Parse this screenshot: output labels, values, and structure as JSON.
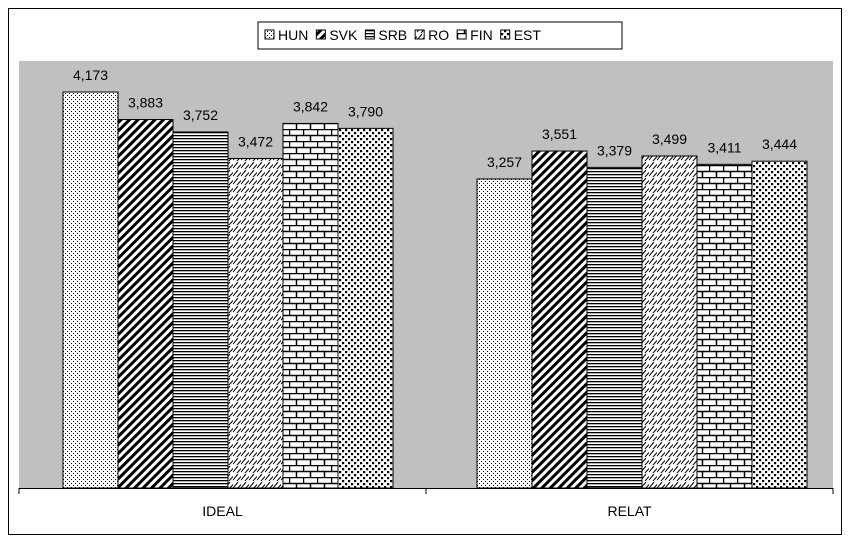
{
  "chart_data": {
    "type": "bar",
    "title": "",
    "xlabel": "",
    "ylabel": "",
    "categories": [
      "IDEAL",
      "RELAT"
    ],
    "series": [
      {
        "name": "HUN",
        "values": [
          4.173,
          3.257
        ],
        "labels": [
          "4,173",
          "3,257"
        ],
        "pattern": "dots"
      },
      {
        "name": "SVK",
        "values": [
          3.883,
          3.551
        ],
        "labels": [
          "3,883",
          "3,551"
        ],
        "pattern": "wide-diagonal"
      },
      {
        "name": "SRB",
        "values": [
          3.752,
          3.379
        ],
        "labels": [
          "3,752",
          "3,379"
        ],
        "pattern": "horizontal"
      },
      {
        "name": "RO",
        "values": [
          3.472,
          3.499
        ],
        "labels": [
          "3,472",
          "3,499"
        ],
        "pattern": "dashed-diagonal"
      },
      {
        "name": "FIN",
        "values": [
          3.842,
          3.411
        ],
        "labels": [
          "3,842",
          "3,411"
        ],
        "pattern": "brick"
      },
      {
        "name": "EST",
        "values": [
          3.79,
          3.444
        ],
        "labels": [
          "3,790",
          "3,444"
        ],
        "pattern": "large-dots"
      }
    ],
    "ylim": [
      0,
      4.5
    ],
    "grid": false,
    "legend_position": "top",
    "plot_background": "#c0c0c0"
  }
}
